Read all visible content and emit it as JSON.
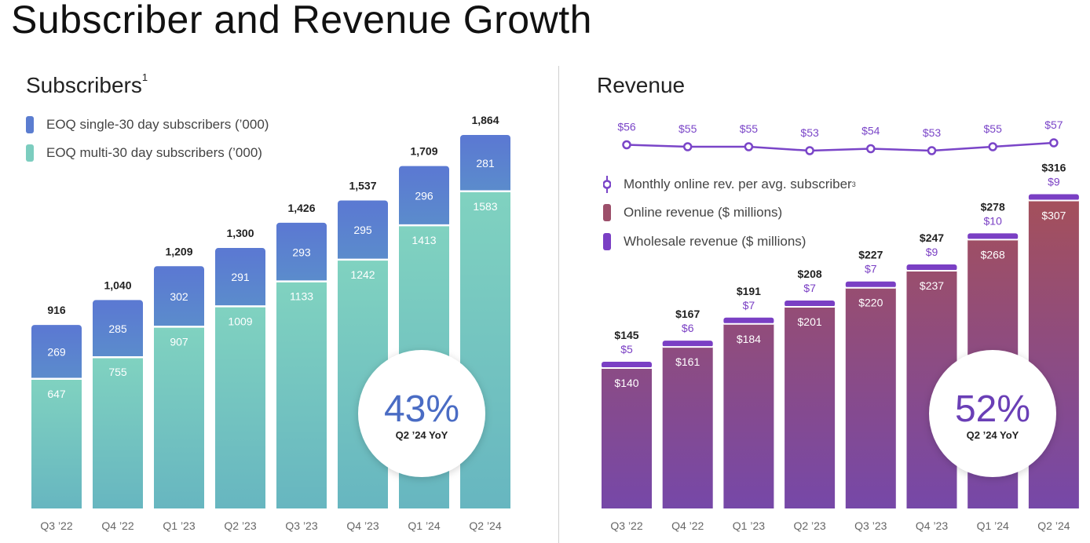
{
  "page": {
    "title": "Subscriber and Revenue Growth"
  },
  "chart_data": [
    {
      "type": "bar",
      "stacked": true,
      "title": "Subscribers",
      "title_footnote": "1",
      "categories": [
        "Q3 ’22",
        "Q4 ’22",
        "Q1 ’23",
        "Q2 ’23",
        "Q3 ’23",
        "Q4 ’23",
        "Q1 ’24",
        "Q2 ’24"
      ],
      "series": [
        {
          "name": "EOQ multi-30 day subscribers  (’000)",
          "values": [
            647,
            755,
            907,
            1009,
            1133,
            1242,
            1413,
            1583
          ]
        },
        {
          "name": "EOQ single-30 day subscribers (’000)",
          "values": [
            269,
            285,
            302,
            291,
            293,
            295,
            296,
            281
          ]
        }
      ],
      "totals": [
        916,
        1040,
        1209,
        1300,
        1426,
        1537,
        1709,
        1864
      ],
      "colors": {
        "single": "#5b7dd0",
        "multi": "#7ccdbf"
      },
      "badge": {
        "value": "43%",
        "label": "Q2 ’24 YoY",
        "color": "#4a6cc4"
      }
    },
    {
      "type": "bar",
      "stacked": true,
      "title": "Revenue",
      "categories": [
        "Q3 ’22",
        "Q4 ’22",
        "Q1 ’23",
        "Q2 ’23",
        "Q3 ’23",
        "Q4 ’23",
        "Q1 ’24",
        "Q2 ’24"
      ],
      "series": [
        {
          "name": "Online revenue ($ millions)",
          "values": [
            140,
            161,
            184,
            201,
            220,
            237,
            268,
            307
          ],
          "labels": [
            "$140",
            "$161",
            "$184",
            "$201",
            "$220",
            "$237",
            "$268",
            "$307"
          ]
        },
        {
          "name": "Wholesale revenue ($ millions)",
          "values": [
            5,
            6,
            7,
            7,
            7,
            9,
            10,
            9
          ],
          "labels": [
            "$5",
            "$6",
            "$7",
            "$7",
            "$7",
            "$9",
            "$10",
            "$9"
          ]
        }
      ],
      "totals": [
        145,
        167,
        191,
        208,
        227,
        247,
        278,
        316
      ],
      "total_labels": [
        "$145",
        "$167",
        "$191",
        "$208",
        "$227",
        "$247",
        "$278",
        "$316"
      ],
      "line_series": {
        "name": "Monthly online rev. per avg. subscriber",
        "footnote": "3",
        "values": [
          56,
          55,
          55,
          53,
          54,
          53,
          55,
          57
        ],
        "labels": [
          "$56",
          "$55",
          "$55",
          "$53",
          "$54",
          "$53",
          "$55",
          "$57"
        ]
      },
      "colors": {
        "online_top": "#a24f62",
        "online_bottom": "#7c4aa8",
        "wholesale": "#7a3fc4",
        "line": "#7a45c8"
      },
      "badge": {
        "value": "52%",
        "label": "Q2 ’24 YoY",
        "color": "#6a3fb6"
      }
    }
  ]
}
